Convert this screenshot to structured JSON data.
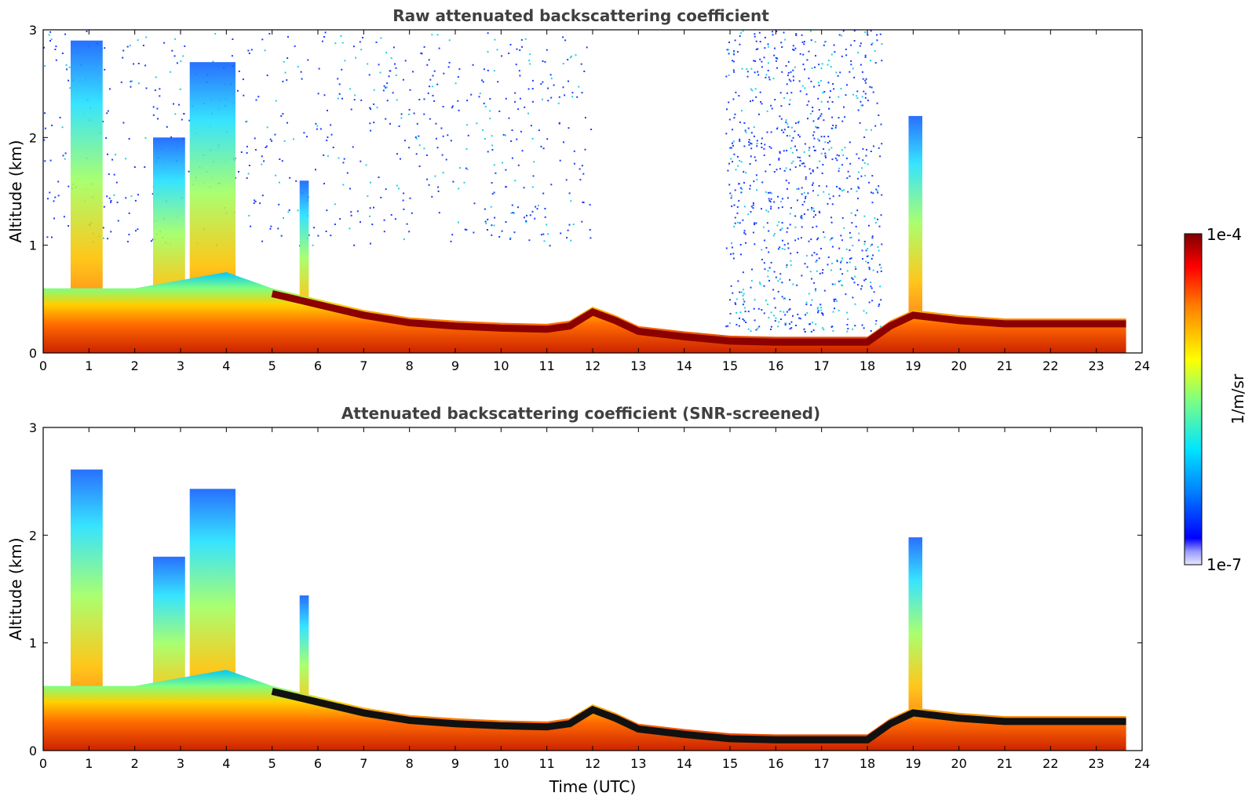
{
  "chart_data": [
    {
      "type": "heatmap",
      "title": "Raw attenuated backscattering coefficient",
      "xlabel": "",
      "ylabel": "Altitude (km)",
      "xlim": [
        0,
        24
      ],
      "ylim": [
        0,
        3
      ],
      "x_ticks": [
        "0",
        "1",
        "2",
        "3",
        "4",
        "5",
        "6",
        "7",
        "8",
        "9",
        "10",
        "11",
        "12",
        "13",
        "14",
        "15",
        "16",
        "17",
        "18",
        "19",
        "20",
        "21",
        "22",
        "23",
        "24"
      ],
      "y_ticks": [
        "0",
        "1",
        "2",
        "3"
      ],
      "data_end_time": 23.65,
      "boundary_layer_top_km": [
        [
          0,
          0.6
        ],
        [
          2,
          0.6
        ],
        [
          4,
          0.75
        ],
        [
          5,
          0.6
        ],
        [
          6,
          0.5
        ],
        [
          7,
          0.4
        ],
        [
          8,
          0.33
        ],
        [
          9,
          0.3
        ],
        [
          10,
          0.28
        ],
        [
          11,
          0.27
        ],
        [
          11.5,
          0.3
        ],
        [
          12,
          0.43
        ],
        [
          12.5,
          0.35
        ],
        [
          13,
          0.25
        ],
        [
          14,
          0.2
        ],
        [
          15,
          0.16
        ],
        [
          16,
          0.15
        ],
        [
          17,
          0.15
        ],
        [
          18,
          0.15
        ],
        [
          18.5,
          0.3
        ],
        [
          19,
          0.4
        ],
        [
          20,
          0.35
        ],
        [
          21,
          0.32
        ],
        [
          22,
          0.32
        ],
        [
          23.65,
          0.32
        ]
      ],
      "cloud_features": [
        {
          "time_range": [
            0.6,
            1.3
          ],
          "base_km": 0,
          "top_km": 2.9
        },
        {
          "time_range": [
            2.4,
            3.1
          ],
          "base_km": 0,
          "top_km": 2.0
        },
        {
          "time_range": [
            3.2,
            4.2
          ],
          "base_km": 0,
          "top_km": 2.7
        },
        {
          "time_range": [
            5.6,
            5.8
          ],
          "base_km": 0,
          "top_km": 1.6
        },
        {
          "time_range": [
            18.9,
            19.2
          ],
          "base_km": 0,
          "top_km": 2.2
        }
      ],
      "noise_regions": [
        {
          "time_range": [
            0,
            12
          ],
          "altitude_range_km": [
            1,
            3
          ],
          "density": "medium"
        },
        {
          "time_range": [
            14.9,
            18.3
          ],
          "altitude_range_km": [
            0.2,
            3
          ],
          "density": "high"
        }
      ]
    },
    {
      "type": "heatmap",
      "title": "Attenuated backscattering coefficient (SNR-screened)",
      "xlabel": "Time (UTC)",
      "ylabel": "Altitude (km)",
      "xlim": [
        0,
        24
      ],
      "ylim": [
        0,
        3
      ],
      "x_ticks": [
        "0",
        "1",
        "2",
        "3",
        "4",
        "5",
        "6",
        "7",
        "8",
        "9",
        "10",
        "11",
        "12",
        "13",
        "14",
        "15",
        "16",
        "17",
        "18",
        "19",
        "20",
        "21",
        "22",
        "23",
        "24"
      ],
      "y_ticks": [
        "0",
        "1",
        "2",
        "3"
      ],
      "data_end_time": 23.65
    }
  ],
  "colorbar": {
    "label": "1/m/sr",
    "max_label": "1e-4",
    "min_label": "1e-7",
    "scale": "log",
    "colormap": "jet"
  }
}
